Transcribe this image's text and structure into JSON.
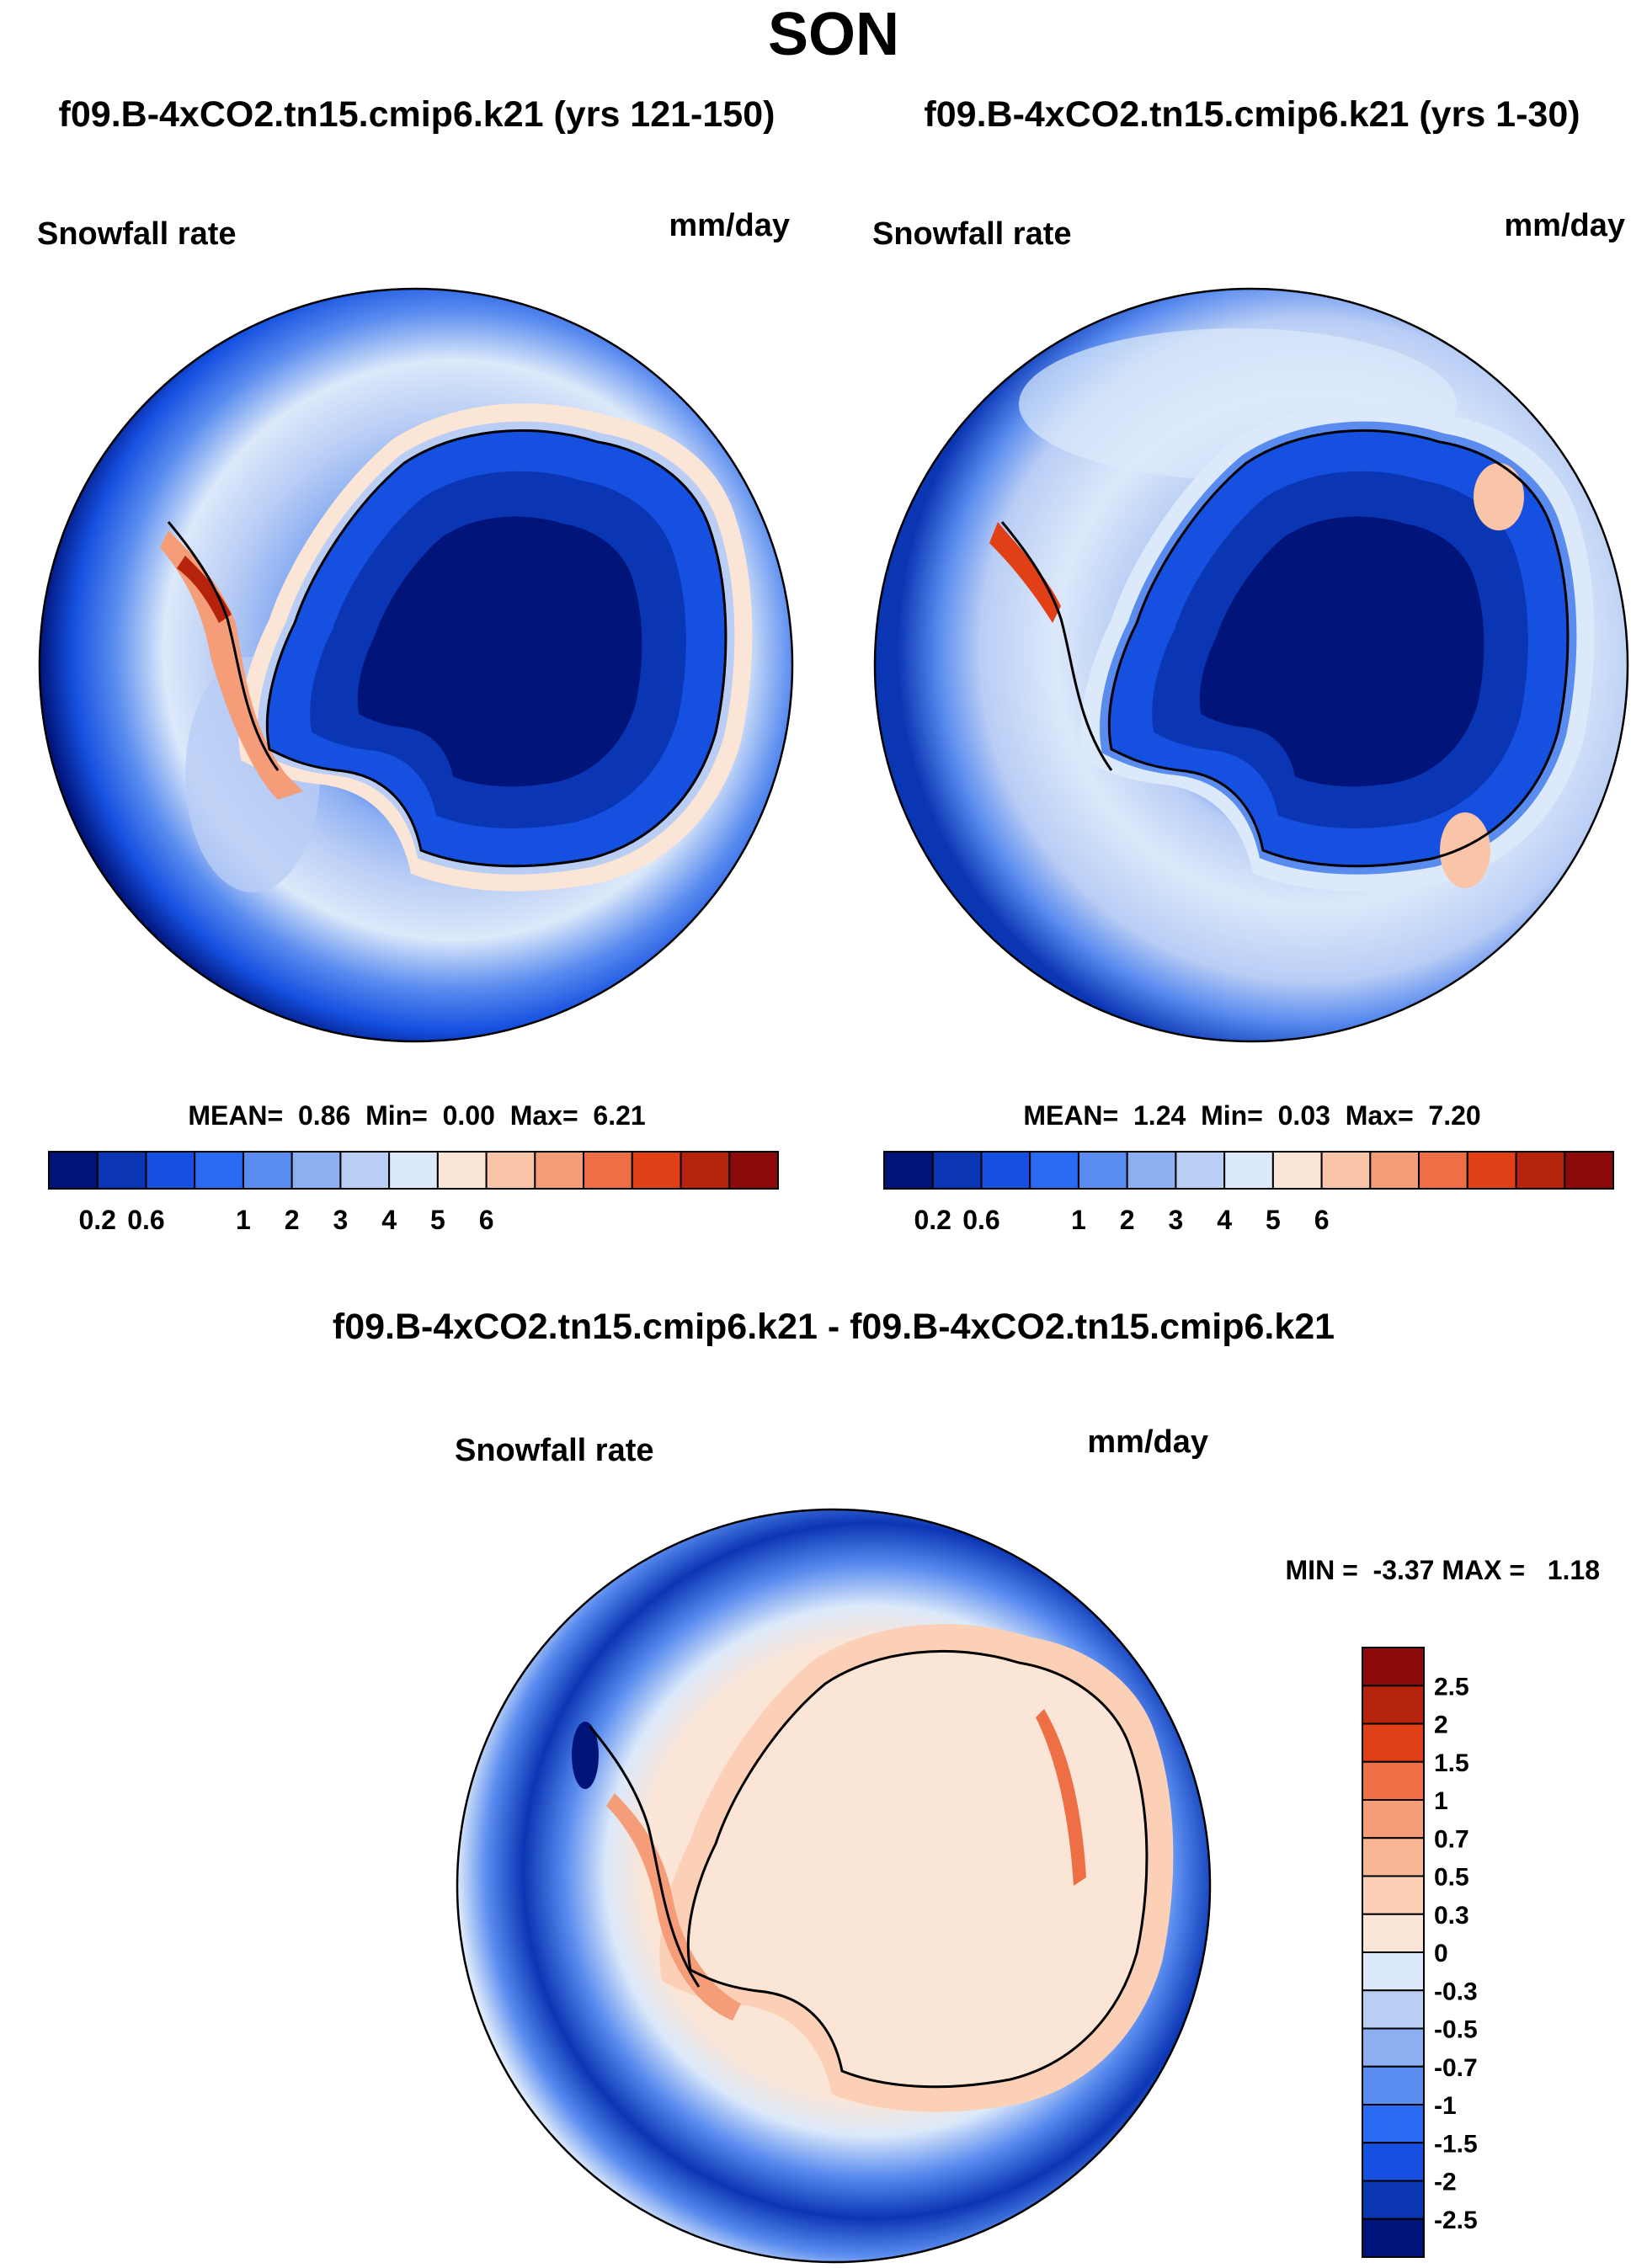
{
  "figure": {
    "title": "SON"
  },
  "panels": [
    {
      "title": "f09.B-4xCO2.tn15.cmip6.k21 (yrs 121-150)",
      "variable": "Snowfall rate",
      "units": "mm/day",
      "stats_text": "MEAN=  0.86  Min=  0.00  Max=  6.21",
      "stats": {
        "mean": 0.86,
        "min": 0.0,
        "max": 6.21
      }
    },
    {
      "title": "f09.B-4xCO2.tn15.cmip6.k21 (yrs 1-30)",
      "variable": "Snowfall rate",
      "units": "mm/day",
      "stats_text": "MEAN=  1.24  Min=  0.03  Max=  7.20",
      "stats": {
        "mean": 1.24,
        "min": 0.03,
        "max": 7.2
      }
    },
    {
      "title": "f09.B-4xCO2.tn15.cmip6.k21 - f09.B-4xCO2.tn15.cmip6.k21",
      "variable": "Snowfall rate",
      "units": "mm/day",
      "stats_text": "MIN =  -3.37 MAX =   1.18",
      "stats": {
        "min": -3.37,
        "max": 1.18
      }
    }
  ],
  "chart_data": [
    {
      "type": "heatmap",
      "projection": "south-polar-stereographic",
      "title": "f09.B-4xCO2.tn15.cmip6.k21 (yrs 121-150)",
      "variable": "Snowfall rate",
      "units": "mm/day",
      "stats": {
        "mean": 0.86,
        "min": 0.0,
        "max": 6.21
      },
      "colorbar": {
        "orientation": "horizontal",
        "tick_labels": [
          "0.2",
          "0.6",
          "1",
          "2",
          "3",
          "4",
          "5",
          "6"
        ],
        "colors": [
          "#00147a",
          "#0a36b4",
          "#1550e0",
          "#2a6af2",
          "#5a8cef",
          "#8caff2",
          "#b9cdf5",
          "#dce9fa",
          "#fbe5d6",
          "#f9c4a7",
          "#f59c78",
          "#ee6f45",
          "#e14016",
          "#b5230c",
          "#8c0a0a"
        ]
      }
    },
    {
      "type": "heatmap",
      "projection": "south-polar-stereographic",
      "title": "f09.B-4xCO2.tn15.cmip6.k21 (yrs 1-30)",
      "variable": "Snowfall rate",
      "units": "mm/day",
      "stats": {
        "mean": 1.24,
        "min": 0.03,
        "max": 7.2
      },
      "colorbar": {
        "orientation": "horizontal",
        "tick_labels": [
          "0.2",
          "0.6",
          "1",
          "2",
          "3",
          "4",
          "5",
          "6"
        ],
        "colors": [
          "#00147a",
          "#0a36b4",
          "#1550e0",
          "#2a6af2",
          "#5a8cef",
          "#8caff2",
          "#b9cdf5",
          "#dce9fa",
          "#fbe5d6",
          "#f9c4a7",
          "#f59c78",
          "#ee6f45",
          "#e14016",
          "#b5230c",
          "#8c0a0a"
        ]
      }
    },
    {
      "type": "heatmap",
      "projection": "south-polar-stereographic",
      "title": "f09.B-4xCO2.tn15.cmip6.k21 - f09.B-4xCO2.tn15.cmip6.k21",
      "variable": "Snowfall rate",
      "units": "mm/day",
      "stats": {
        "min": -3.37,
        "max": 1.18
      },
      "colorbar": {
        "orientation": "vertical",
        "tick_labels": [
          "2.5",
          "2",
          "1.5",
          "1",
          "0.7",
          "0.5",
          "0.3",
          "0",
          "-0.3",
          "-0.5",
          "-0.7",
          "-1",
          "-1.5",
          "-2",
          "-2.5"
        ],
        "colors": [
          "#8c0a0a",
          "#b5230c",
          "#e14016",
          "#ee6f45",
          "#f59c78",
          "#f9b796",
          "#fbd0b6",
          "#fbe5d6",
          "#dce9fa",
          "#b9cdf5",
          "#8caff2",
          "#5a8cef",
          "#2a6af2",
          "#1550e0",
          "#0a36b4",
          "#00147a"
        ]
      }
    }
  ]
}
